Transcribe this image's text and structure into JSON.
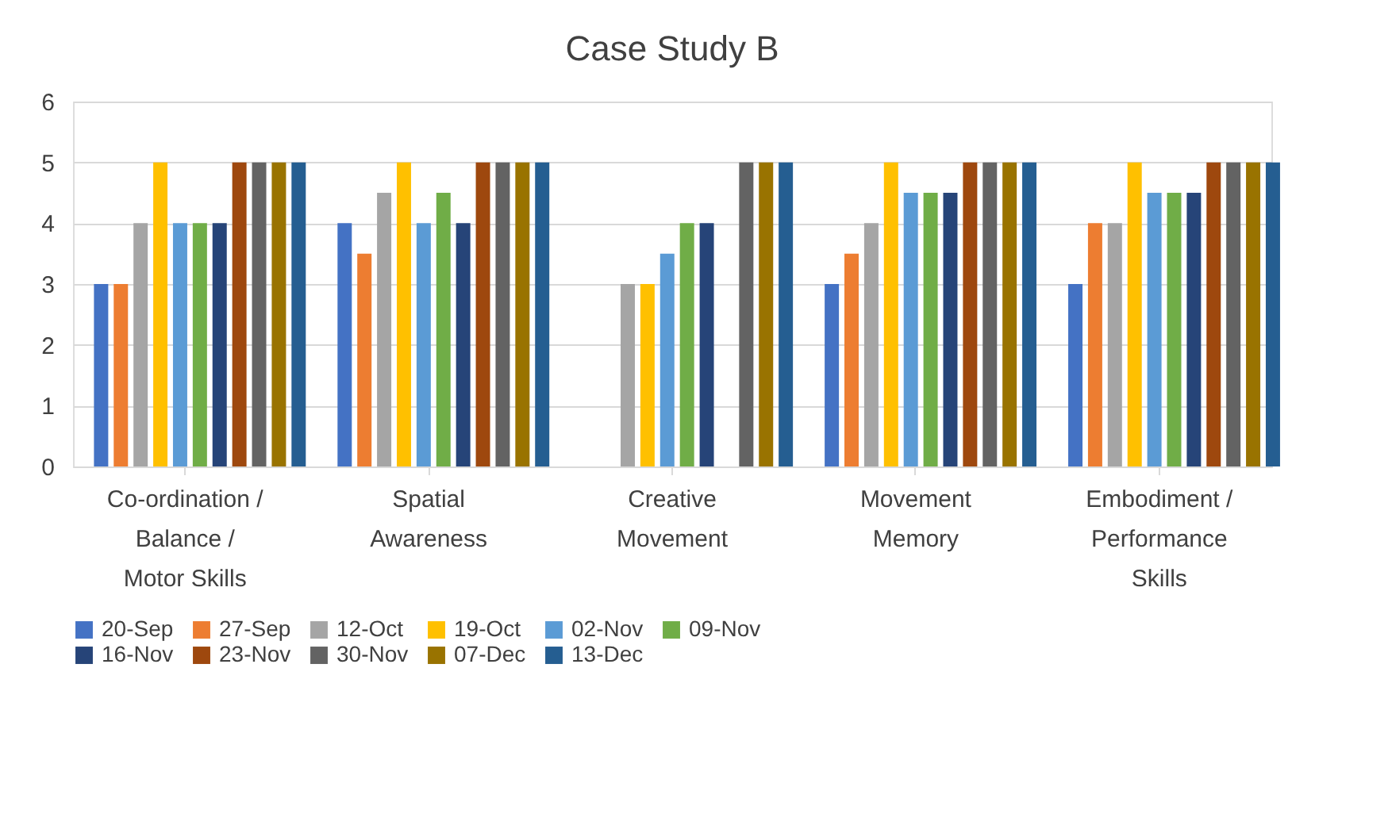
{
  "chart_data": {
    "type": "bar",
    "title": "Case Study B",
    "categories": [
      "Co-ordination / Balance / Motor Skills",
      "Spatial Awareness",
      "Creative Movement",
      "Movement Memory",
      "Embodiment / Performance Skills"
    ],
    "series": [
      {
        "name": "20-Sep",
        "color": "#4472c4",
        "values": [
          3,
          4,
          null,
          3,
          3
        ]
      },
      {
        "name": "27-Sep",
        "color": "#ed7d31",
        "values": [
          3,
          3.5,
          null,
          3.5,
          4
        ]
      },
      {
        "name": "12-Oct",
        "color": "#a5a5a5",
        "values": [
          4,
          4.5,
          3,
          4,
          4
        ]
      },
      {
        "name": "19-Oct",
        "color": "#ffc000",
        "values": [
          5,
          5,
          3,
          5,
          5
        ]
      },
      {
        "name": "02-Nov",
        "color": "#5b9bd5",
        "values": [
          4,
          4,
          3.5,
          4.5,
          4.5
        ]
      },
      {
        "name": "09-Nov",
        "color": "#70ad47",
        "values": [
          4,
          4.5,
          4,
          4.5,
          4.5
        ]
      },
      {
        "name": "16-Nov",
        "color": "#264478",
        "values": [
          4,
          4,
          4,
          4.5,
          4.5
        ]
      },
      {
        "name": "23-Nov",
        "color": "#9e480e",
        "values": [
          5,
          5,
          null,
          5,
          5
        ]
      },
      {
        "name": "30-Nov",
        "color": "#636363",
        "values": [
          5,
          5,
          5,
          5,
          5
        ]
      },
      {
        "name": "07-Dec",
        "color": "#997300",
        "values": [
          5,
          5,
          5,
          5,
          5
        ]
      },
      {
        "name": "13-Dec",
        "color": "#255e91",
        "values": [
          5,
          5,
          5,
          5,
          5
        ]
      }
    ],
    "ylim": [
      0,
      6
    ],
    "yticks": [
      0,
      1,
      2,
      3,
      4,
      5,
      6
    ],
    "grid": "y",
    "legend": "bottom"
  }
}
